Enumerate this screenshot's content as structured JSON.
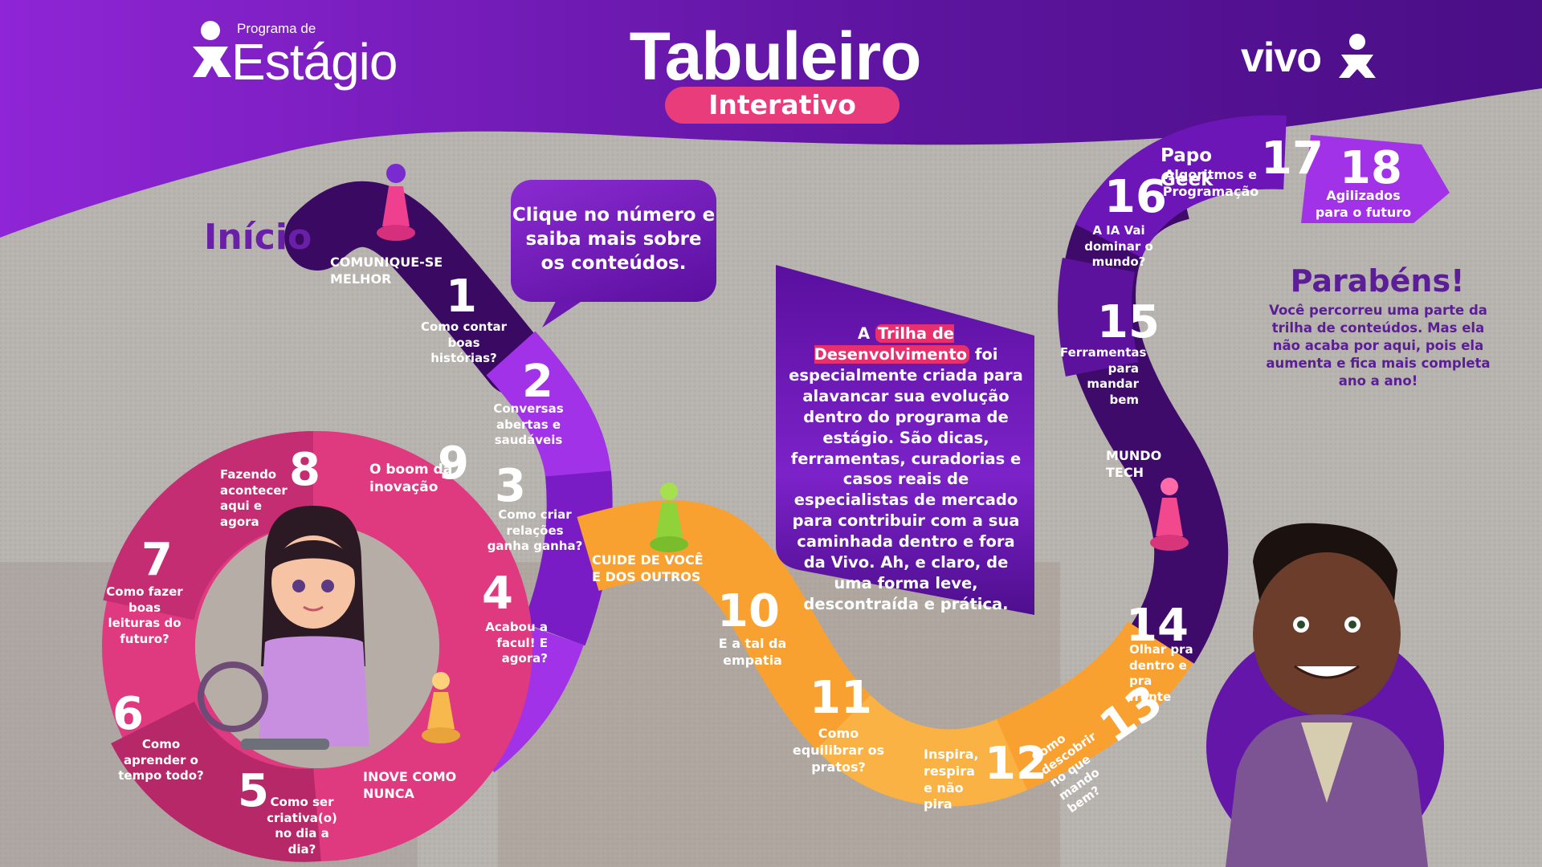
{
  "header": {
    "program_small": "Programa de",
    "program_big": "Estágio",
    "title": "Tabuleiro",
    "subtitle": "Interativo",
    "brand": "vivo"
  },
  "start_label": "Início",
  "bubble_text": "Clique no número e saiba mais sobre os conteúdos.",
  "info": {
    "highlight": "Trilha de Desenvolvimento",
    "prefix": "A",
    "body": "foi especialmente criada para alavancar sua evolução dentro do programa de estágio. São dicas, ferramentas, curadorias e casos reais de especialistas de mercado para contribuir com a sua caminhada dentro e fora da Vivo. Ah, e claro, de uma forma leve, descontraída e prática."
  },
  "congrats": {
    "title": "Parabéns!",
    "body": "Você percorreu uma parte da trilha de conteúdos. Mas ela não acaba por aqui, pois ela aumenta e fica mais completa ano a ano!"
  },
  "zones": {
    "z1": "COMUNIQUE-SE MELHOR",
    "z2": "INOVE COMO NUNCA",
    "z3": "CUIDE DE VOCÊ E DOS OUTROS",
    "z4": "MUNDO TECH"
  },
  "steps": [
    {
      "number": "1",
      "label": "Como contar boas histórias?"
    },
    {
      "number": "2",
      "label": "Conversas abertas e saudáveis"
    },
    {
      "number": "3",
      "label": "Como criar relações ganha ganha?"
    },
    {
      "number": "4",
      "label": "Acabou a facul! E agora?"
    },
    {
      "number": "5",
      "label": "Como ser criativa(o) no dia a dia?"
    },
    {
      "number": "6",
      "label": "Como aprender o tempo todo?"
    },
    {
      "number": "7",
      "label": "Como fazer boas leituras do futuro?"
    },
    {
      "number": "8",
      "label": "Fazendo acontecer aqui e agora"
    },
    {
      "number": "9",
      "label": "O boom da inovação"
    },
    {
      "number": "10",
      "label": "E a tal da empatia"
    },
    {
      "number": "11",
      "label": "Como equilibrar os pratos?"
    },
    {
      "number": "12",
      "label": "Inspira, respira e não pira"
    },
    {
      "number": "13",
      "label": "Como descobrir no que mando bem?"
    },
    {
      "number": "14",
      "label": "Olhar pra dentro e pra frente"
    },
    {
      "number": "15",
      "label": "Ferramentas para mandar bem"
    },
    {
      "number": "16",
      "label": "A IA Vai dominar o mundo?"
    },
    {
      "number": "17",
      "label": "Algoritmos e Programação",
      "title": "Papo Geek"
    },
    {
      "number": "18",
      "label": "Agilizados para o futuro"
    }
  ],
  "colors": {
    "purple_dark": "#3a0a63",
    "purple": "#6d16b8",
    "violet": "#a232e8",
    "pink": "#e8306f",
    "orange": "#f9a130",
    "text_purple": "#5b1e96"
  }
}
